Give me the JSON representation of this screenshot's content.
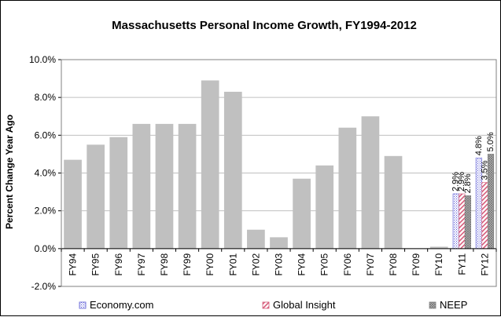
{
  "chart_data": {
    "type": "bar",
    "title": "Massachusetts Personal Income Growth, FY1994-2012",
    "xlabel": "",
    "ylabel": "Percent Change Year Ago",
    "ylim": [
      -2.0,
      10.0
    ],
    "yticks": [
      "-2.0%",
      "0.0%",
      "2.0%",
      "4.0%",
      "6.0%",
      "8.0%",
      "10.0%"
    ],
    "ytick_values": [
      -2,
      0,
      2,
      4,
      6,
      8,
      10
    ],
    "grid": true,
    "legend_position": "bottom",
    "categories": [
      "FY94",
      "FY95",
      "FY96",
      "FY97",
      "FY98",
      "FY99",
      "FY00",
      "FY01",
      "FY02",
      "FY03",
      "FY04",
      "FY05",
      "FY06",
      "FY07",
      "FY08",
      "FY09",
      "FY10",
      "FY11",
      "FY12"
    ],
    "historical": [
      4.7,
      5.5,
      5.9,
      6.6,
      6.6,
      6.6,
      8.9,
      8.3,
      1.0,
      0.6,
      3.7,
      4.4,
      6.4,
      7.0,
      4.9,
      0.0,
      0.1,
      null,
      null
    ],
    "series": [
      {
        "name": "Economy.com",
        "values": [
          null,
          null,
          null,
          null,
          null,
          null,
          null,
          null,
          null,
          null,
          null,
          null,
          null,
          null,
          null,
          null,
          null,
          2.9,
          4.8
        ],
        "labels": [
          "2.9%",
          "4.8%"
        ],
        "color": "#5b5bd6"
      },
      {
        "name": "Global Insight",
        "values": [
          null,
          null,
          null,
          null,
          null,
          null,
          null,
          null,
          null,
          null,
          null,
          null,
          null,
          null,
          null,
          null,
          null,
          2.9,
          3.5
        ],
        "labels": [
          "2.9%",
          "3.5%"
        ],
        "color": "#d65b7a"
      },
      {
        "name": "NEEP",
        "values": [
          null,
          null,
          null,
          null,
          null,
          null,
          null,
          null,
          null,
          null,
          null,
          null,
          null,
          null,
          null,
          null,
          null,
          2.8,
          5.0
        ],
        "labels": [
          "2.8%",
          "5.0%"
        ],
        "color": "#7f7f7f"
      }
    ],
    "colors": {
      "historical": "#c0c0c0",
      "grid": "#c0c0c0"
    }
  }
}
